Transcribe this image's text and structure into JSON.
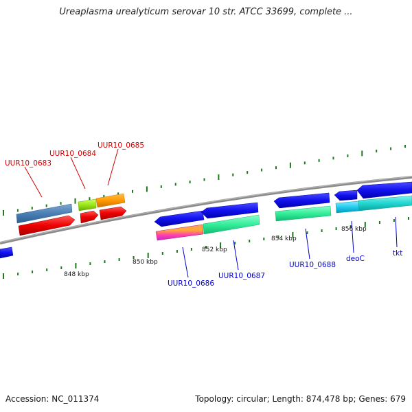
{
  "title": "Ureaplasma urealyticum serovar 10 str. ATCC 33699, complete ...",
  "footer": {
    "accession": "Accession: NC_011374",
    "summary": "Topology: circular; Length: 874,478 bp; Genes: 679"
  },
  "colors": {
    "backbone": "#8a8a8a",
    "tick": "#1a7a1a",
    "forward_label": "#cc0000",
    "reverse_label": "#0000cc"
  },
  "scale_labels": [
    "848 kbp",
    "850 kbp",
    "852 kbp",
    "854 kbp",
    "856 kbp"
  ],
  "gene_labels": [
    {
      "text": "UUR10_0683",
      "strand": "forward"
    },
    {
      "text": "UUR10_0684",
      "strand": "forward"
    },
    {
      "text": "UUR10_0685",
      "strand": "forward"
    },
    {
      "text": "UUR10_0686",
      "strand": "reverse"
    },
    {
      "text": "UUR10_0687",
      "strand": "reverse"
    },
    {
      "text": "UUR10_0688",
      "strand": "reverse"
    },
    {
      "text": "deoC",
      "strand": "reverse"
    },
    {
      "text": "tkt",
      "strand": "reverse"
    }
  ]
}
